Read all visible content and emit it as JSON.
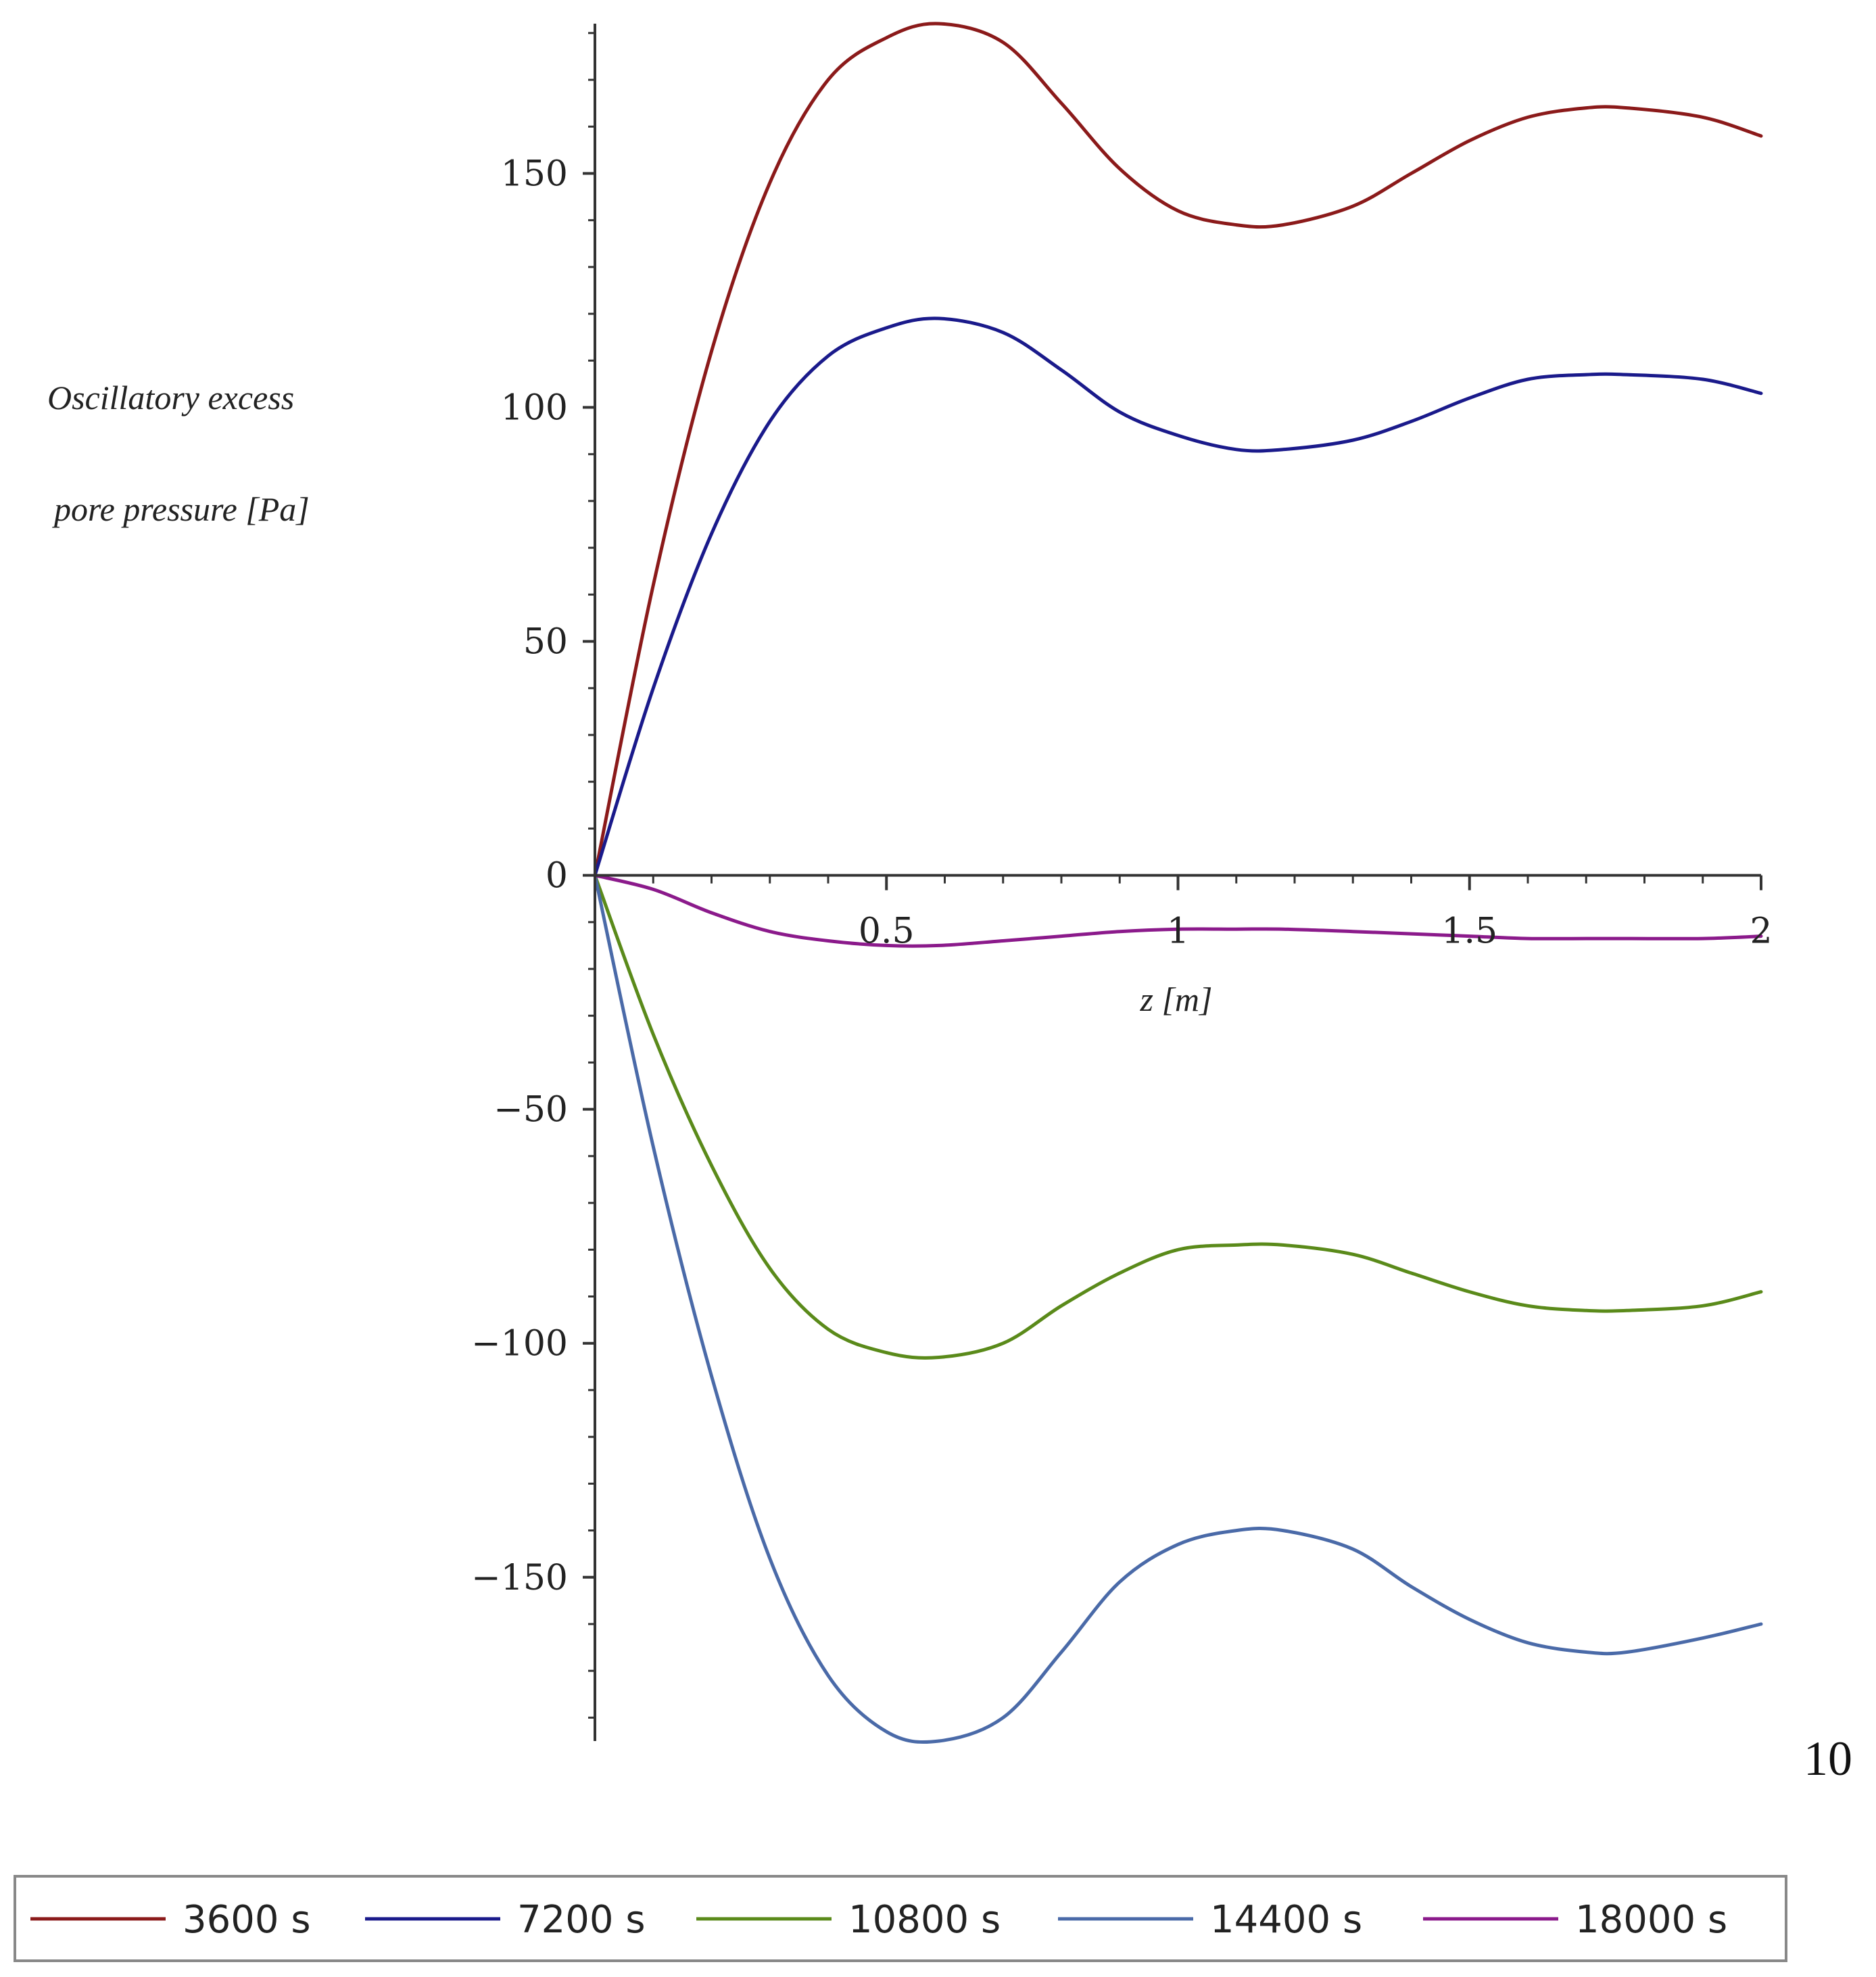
{
  "chart_data": {
    "type": "line",
    "title": "",
    "xlabel": "z [m]",
    "ylabel_lines": [
      "Oscillatory excess",
      "pore pressure [Pa]"
    ],
    "xlim": [
      0,
      2
    ],
    "ylim": [
      -185,
      182
    ],
    "x_ticks": [
      0.5,
      1,
      1.5,
      2
    ],
    "x_tick_labels": [
      "0.5",
      "1",
      "1.5",
      "2"
    ],
    "y_ticks": [
      -150,
      -100,
      -50,
      0,
      50,
      100,
      150
    ],
    "y_tick_labels": [
      "−150",
      "−100",
      "−50",
      "0",
      "50",
      "100",
      "150"
    ],
    "grid": false,
    "legend_position": "bottom",
    "x": [
      0,
      0.1,
      0.2,
      0.3,
      0.4,
      0.5,
      0.59,
      0.7,
      0.8,
      0.9,
      1.0,
      1.1,
      1.18,
      1.3,
      1.4,
      1.5,
      1.6,
      1.7,
      1.77,
      1.9,
      2.0
    ],
    "series": [
      {
        "name": "3600 s",
        "color": "#8b1a1a",
        "values": [
          0,
          62,
          112,
          148,
          170,
          179,
          182,
          178,
          165,
          151,
          142,
          139,
          139,
          143,
          150,
          157,
          162,
          164,
          164,
          162,
          158
        ]
      },
      {
        "name": "7200 s",
        "color": "#1a1a8b",
        "values": [
          0,
          40,
          73,
          97,
          111,
          117,
          119,
          116,
          108,
          99,
          94,
          91,
          91,
          93,
          97,
          102,
          106,
          107,
          107,
          106,
          103
        ]
      },
      {
        "name": "10800 s",
        "color": "#5a8a1a",
        "values": [
          0,
          -34,
          -62,
          -84,
          -97,
          -102,
          -103,
          -100,
          -92,
          -85,
          -80,
          -79,
          -79,
          -81,
          -85,
          -89,
          -92,
          -93,
          -93,
          -92,
          -89
        ]
      },
      {
        "name": "14400 s",
        "color": "#4a6aa8",
        "values": [
          0,
          -58,
          -107,
          -146,
          -171,
          -183,
          -185,
          -180,
          -166,
          -151,
          -143,
          -140,
          -140,
          -144,
          -152,
          -159,
          -164,
          -166,
          -166,
          -163,
          -160
        ]
      },
      {
        "name": "18000 s",
        "color": "#8b1a8b",
        "values": [
          0,
          -3,
          -8,
          -12,
          -14,
          -15,
          -15,
          -14,
          -13,
          -12,
          -11.5,
          -11.5,
          -11.5,
          -12,
          -12.5,
          -13,
          -13.5,
          -13.5,
          -13.5,
          -13.5,
          -13
        ]
      }
    ]
  },
  "page_number": "10"
}
